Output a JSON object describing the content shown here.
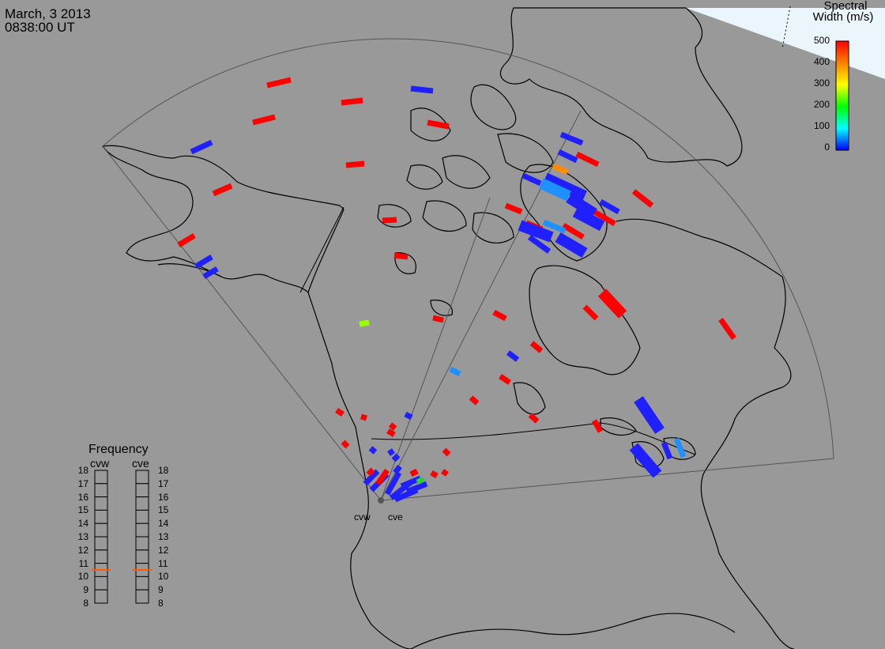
{
  "header": {
    "date": "March, 3 2013",
    "time": "0838:00 UT"
  },
  "colorbar": {
    "title_line1": "Spectral",
    "title_line2": "Width (m/s)",
    "ticks": [
      "500",
      "400",
      "300",
      "200",
      "100",
      "0"
    ],
    "colors": [
      "#ff0000",
      "#ff8000",
      "#ffff00",
      "#00ff00",
      "#00ffff",
      "#0000ff"
    ]
  },
  "frequency": {
    "title": "Frequency",
    "radars": [
      {
        "name": "cvw",
        "selected_mhz": 10.5
      },
      {
        "name": "cve",
        "selected_mhz": 10.5
      }
    ],
    "ticks": [
      "18",
      "17",
      "16",
      "15",
      "14",
      "13",
      "12",
      "11",
      "10",
      "9",
      "8"
    ],
    "indicator_color": "#ff5a00"
  },
  "sites": [
    {
      "name": "cvw"
    },
    {
      "name": "cve"
    }
  ],
  "colors": {
    "background": "#999999",
    "coast": "#000000",
    "fov": "#555555",
    "high_width": "#ff0000",
    "low_width": "#2020ff",
    "mid_width": "#1e90ff"
  }
}
